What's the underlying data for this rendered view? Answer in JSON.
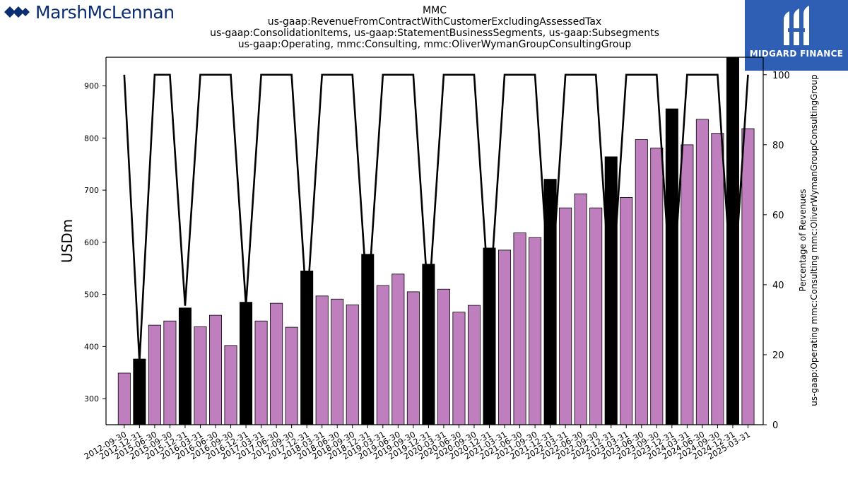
{
  "brand_left": "MarshMcLennan",
  "brand_right": "MIDGARD FINANCE",
  "title_lines": [
    "MMC",
    "us-gaap:RevenueFromContractWithCustomerExcludingAssessedTax",
    "us-gaap:ConsolidationItems, us-gaap:StatementBusinessSegments, us-gaap:Subsegments",
    "us-gaap:Operating, mmc:Consulting, mmc:OliverWymanGroupConsultingGroup"
  ],
  "colors": {
    "bar_quarter": "#bf7fbf",
    "bar_annual": "#000000",
    "line": "#000000",
    "logo_blue": "#2f5fb4",
    "brand_blue": "#0b2d72"
  },
  "chart_data": {
    "type": "bar",
    "ylabel": "USDm",
    "y2label": "us-gaap:Operating mmc:Consulting mmc:OliverWymanGroupConsultingGroup",
    "y2label_line1": "Percentage of Revenues",
    "ylim": [
      250,
      955
    ],
    "y2lim": [
      0,
      105
    ],
    "yticks": [
      300,
      400,
      500,
      600,
      700,
      800,
      900
    ],
    "y2ticks": [
      0,
      20,
      40,
      60,
      80,
      100
    ],
    "grid": false,
    "categories": [
      "2012-09-30",
      "2012-12-31",
      "2015-06-30",
      "2015-09-30",
      "2015-12-31",
      "2016-03-31",
      "2016-06-30",
      "2016-09-30",
      "2016-12-31",
      "2017-03-31",
      "2017-06-30",
      "2017-09-30",
      "2017-12-31",
      "2018-03-31",
      "2018-06-30",
      "2018-09-30",
      "2018-12-31",
      "2019-03-31",
      "2019-06-30",
      "2019-09-30",
      "2019-12-31",
      "2020-03-31",
      "2020-06-30",
      "2020-09-30",
      "2020-12-31",
      "2021-03-31",
      "2021-06-30",
      "2021-09-30",
      "2021-12-31",
      "2022-03-31",
      "2022-06-30",
      "2022-09-30",
      "2022-12-31",
      "2023-03-31",
      "2023-06-30",
      "2023-09-30",
      "2023-12-31",
      "2024-03-31",
      "2024-06-30",
      "2024-09-30",
      "2024-12-31",
      "2025-03-31"
    ],
    "series": [
      {
        "kind": "bar",
        "values": [
          349,
          376,
          441,
          449,
          474,
          438,
          460,
          402,
          485,
          449,
          483,
          437,
          545,
          497,
          491,
          480,
          577,
          517,
          539,
          505,
          558,
          510,
          466,
          479,
          589,
          585,
          618,
          609,
          721,
          666,
          693,
          666,
          764,
          686,
          797,
          781,
          856,
          787,
          836,
          809,
          954,
          818
        ],
        "annual": [
          false,
          true,
          false,
          false,
          true,
          false,
          false,
          false,
          true,
          false,
          false,
          false,
          true,
          false,
          false,
          false,
          true,
          false,
          false,
          false,
          true,
          false,
          false,
          false,
          true,
          false,
          false,
          false,
          true,
          false,
          false,
          false,
          true,
          false,
          false,
          false,
          true,
          false,
          false,
          false,
          true,
          false
        ]
      },
      {
        "kind": "line",
        "values": [
          100,
          18,
          100,
          100,
          34,
          100,
          100,
          100,
          34,
          100,
          100,
          100,
          33,
          100,
          100,
          100,
          34,
          100,
          100,
          100,
          34,
          100,
          100,
          100,
          34,
          100,
          100,
          100,
          34,
          100,
          100,
          100,
          34,
          100,
          100,
          100,
          34,
          100,
          100,
          100,
          34,
          100
        ]
      }
    ]
  }
}
